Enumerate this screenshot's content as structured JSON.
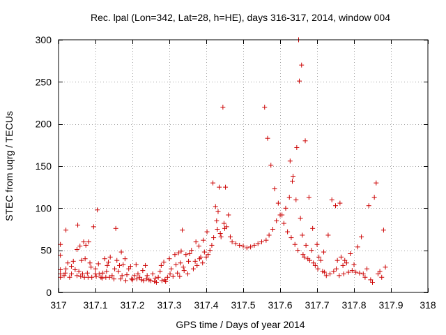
{
  "chart_data": {
    "type": "scatter",
    "title": "Rec. lpal (Lon=342, Lat=28, h=HE), days 316-317, 2014, window 004",
    "xlabel": "GPS time / Days of year 2014",
    "ylabel": "STEC from uqrg / TECUs",
    "xlim": [
      317,
      318
    ],
    "ylim": [
      0,
      300
    ],
    "grid": true,
    "marker": "+",
    "color": "#cc0000",
    "xticks": [
      317,
      317.1,
      317.2,
      317.3,
      317.4,
      317.5,
      317.6,
      317.7,
      317.8,
      317.9,
      318
    ],
    "xtick_labels": [
      "317",
      "317.1",
      "317.2",
      "317.3",
      "317.4",
      "317.5",
      "317.6",
      "317.7",
      "317.8",
      "317.9",
      "318"
    ],
    "yticks": [
      0,
      50,
      100,
      150,
      200,
      250,
      300
    ],
    "ytick_labels": [
      "0",
      "50",
      "100",
      "150",
      "200",
      "250",
      "300"
    ],
    "series": [
      {
        "name": "STEC",
        "points": [
          [
            317.005,
            57
          ],
          [
            317.005,
            44
          ],
          [
            317.005,
            27
          ],
          [
            317.005,
            22
          ],
          [
            317.005,
            18
          ],
          [
            317.015,
            20
          ],
          [
            317.018,
            23
          ],
          [
            317.02,
            28
          ],
          [
            317.02,
            74
          ],
          [
            317.025,
            35
          ],
          [
            317.03,
            18
          ],
          [
            317.035,
            31
          ],
          [
            317.035,
            22
          ],
          [
            317.04,
            37
          ],
          [
            317.045,
            27
          ],
          [
            317.05,
            20
          ],
          [
            317.05,
            51
          ],
          [
            317.052,
            80
          ],
          [
            317.055,
            25
          ],
          [
            317.058,
            55
          ],
          [
            317.06,
            19
          ],
          [
            317.062,
            38
          ],
          [
            317.065,
            22
          ],
          [
            317.068,
            60
          ],
          [
            317.07,
            18
          ],
          [
            317.072,
            40
          ],
          [
            317.074,
            56
          ],
          [
            317.078,
            23
          ],
          [
            317.08,
            18
          ],
          [
            317.082,
            60
          ],
          [
            317.085,
            35
          ],
          [
            317.088,
            30
          ],
          [
            317.09,
            18
          ],
          [
            317.095,
            78
          ],
          [
            317.1,
            22
          ],
          [
            317.1,
            28
          ],
          [
            317.102,
            19
          ],
          [
            317.105,
            98
          ],
          [
            317.108,
            34
          ],
          [
            317.11,
            22
          ],
          [
            317.115,
            18
          ],
          [
            317.118,
            17
          ],
          [
            317.12,
            23
          ],
          [
            317.125,
            40
          ],
          [
            317.128,
            18
          ],
          [
            317.13,
            25
          ],
          [
            317.132,
            32
          ],
          [
            317.135,
            36
          ],
          [
            317.138,
            18
          ],
          [
            317.14,
            42
          ],
          [
            317.145,
            20
          ],
          [
            317.15,
            16
          ],
          [
            317.152,
            28
          ],
          [
            317.155,
            76
          ],
          [
            317.158,
            38
          ],
          [
            317.162,
            25
          ],
          [
            317.165,
            32
          ],
          [
            317.168,
            16
          ],
          [
            317.17,
            48
          ],
          [
            317.172,
            20
          ],
          [
            317.175,
            33
          ],
          [
            317.18,
            40
          ],
          [
            317.182,
            14
          ],
          [
            317.185,
            21
          ],
          [
            317.19,
            28
          ],
          [
            317.195,
            31
          ],
          [
            317.198,
            16
          ],
          [
            317.2,
            15
          ],
          [
            317.205,
            20
          ],
          [
            317.21,
            33
          ],
          [
            317.212,
            16
          ],
          [
            317.215,
            22
          ],
          [
            317.22,
            18
          ],
          [
            317.225,
            15
          ],
          [
            317.228,
            26
          ],
          [
            317.23,
            14
          ],
          [
            317.235,
            32
          ],
          [
            317.238,
            16
          ],
          [
            317.24,
            20
          ],
          [
            317.245,
            15
          ],
          [
            317.25,
            14
          ],
          [
            317.255,
            22
          ],
          [
            317.26,
            13
          ],
          [
            317.262,
            17
          ],
          [
            317.265,
            12
          ],
          [
            317.27,
            18
          ],
          [
            317.275,
            25
          ],
          [
            317.278,
            32
          ],
          [
            317.28,
            14
          ],
          [
            317.285,
            36
          ],
          [
            317.288,
            15
          ],
          [
            317.29,
            13
          ],
          [
            317.295,
            18
          ],
          [
            317.3,
            40
          ],
          [
            317.302,
            22
          ],
          [
            317.305,
            28
          ],
          [
            317.31,
            19
          ],
          [
            317.315,
            45
          ],
          [
            317.318,
            33
          ],
          [
            317.322,
            23
          ],
          [
            317.325,
            47
          ],
          [
            317.328,
            19
          ],
          [
            317.33,
            35
          ],
          [
            317.332,
            49
          ],
          [
            317.335,
            74
          ],
          [
            317.338,
            30
          ],
          [
            317.34,
            26
          ],
          [
            317.345,
            45
          ],
          [
            317.35,
            22
          ],
          [
            317.352,
            37
          ],
          [
            317.355,
            46
          ],
          [
            317.36,
            50
          ],
          [
            317.365,
            28
          ],
          [
            317.37,
            37
          ],
          [
            317.372,
            60
          ],
          [
            317.375,
            32
          ],
          [
            317.38,
            55
          ],
          [
            317.382,
            40
          ],
          [
            317.385,
            42
          ],
          [
            317.39,
            35
          ],
          [
            317.392,
            62
          ],
          [
            317.395,
            48
          ],
          [
            317.4,
            42
          ],
          [
            317.402,
            72
          ],
          [
            317.405,
            45
          ],
          [
            317.41,
            50
          ],
          [
            317.415,
            56
          ],
          [
            317.418,
            130
          ],
          [
            317.42,
            65
          ],
          [
            317.425,
            102
          ],
          [
            317.428,
            85
          ],
          [
            317.43,
            75
          ],
          [
            317.432,
            96
          ],
          [
            317.435,
            125
          ],
          [
            317.438,
            70
          ],
          [
            317.44,
            66
          ],
          [
            317.445,
            220
          ],
          [
            317.448,
            82
          ],
          [
            317.45,
            76
          ],
          [
            317.452,
            125
          ],
          [
            317.455,
            78
          ],
          [
            317.46,
            92
          ],
          [
            317.465,
            66
          ],
          [
            317.47,
            60
          ],
          [
            317.48,
            58
          ],
          [
            317.49,
            56
          ],
          [
            317.5,
            55
          ],
          [
            317.51,
            53
          ],
          [
            317.52,
            54
          ],
          [
            317.53,
            56
          ],
          [
            317.54,
            58
          ],
          [
            317.55,
            60
          ],
          [
            317.558,
            220
          ],
          [
            317.562,
            62
          ],
          [
            317.566,
            183
          ],
          [
            317.57,
            68
          ],
          [
            317.575,
            151
          ],
          [
            317.58,
            75
          ],
          [
            317.585,
            123
          ],
          [
            317.59,
            85
          ],
          [
            317.595,
            106
          ],
          [
            317.6,
            92
          ],
          [
            317.605,
            92
          ],
          [
            317.61,
            82
          ],
          [
            317.615,
            100
          ],
          [
            317.62,
            72
          ],
          [
            317.625,
            113
          ],
          [
            317.627,
            156
          ],
          [
            317.63,
            65
          ],
          [
            317.633,
            132
          ],
          [
            317.635,
            138
          ],
          [
            317.64,
            57
          ],
          [
            317.643,
            110
          ],
          [
            317.645,
            172
          ],
          [
            317.648,
            50
          ],
          [
            317.65,
            300
          ],
          [
            317.652,
            251
          ],
          [
            317.655,
            88
          ],
          [
            317.658,
            270
          ],
          [
            317.66,
            68
          ],
          [
            317.662,
            45
          ],
          [
            317.665,
            42
          ],
          [
            317.668,
            180
          ],
          [
            317.67,
            56
          ],
          [
            317.675,
            40
          ],
          [
            317.678,
            113
          ],
          [
            317.68,
            38
          ],
          [
            317.685,
            50
          ],
          [
            317.688,
            76
          ],
          [
            317.69,
            35
          ],
          [
            317.695,
            32
          ],
          [
            317.7,
            57
          ],
          [
            317.702,
            28
          ],
          [
            317.705,
            42
          ],
          [
            317.71,
            38
          ],
          [
            317.715,
            25
          ],
          [
            317.718,
            48
          ],
          [
            317.72,
            24
          ],
          [
            317.725,
            20
          ],
          [
            317.73,
            68
          ],
          [
            317.735,
            22
          ],
          [
            317.74,
            110
          ],
          [
            317.745,
            25
          ],
          [
            317.75,
            103
          ],
          [
            317.752,
            28
          ],
          [
            317.755,
            38
          ],
          [
            317.76,
            20
          ],
          [
            317.762,
            106
          ],
          [
            317.765,
            42
          ],
          [
            317.77,
            32
          ],
          [
            317.772,
            22
          ],
          [
            317.775,
            38
          ],
          [
            317.78,
            35
          ],
          [
            317.785,
            24
          ],
          [
            317.79,
            46
          ],
          [
            317.795,
            26
          ],
          [
            317.8,
            33
          ],
          [
            317.805,
            24
          ],
          [
            317.81,
            54
          ],
          [
            317.815,
            23
          ],
          [
            317.82,
            66
          ],
          [
            317.825,
            22
          ],
          [
            317.83,
            18
          ],
          [
            317.835,
            28
          ],
          [
            317.84,
            103
          ],
          [
            317.845,
            15
          ],
          [
            317.85,
            12
          ],
          [
            317.855,
            113
          ],
          [
            317.86,
            130
          ],
          [
            317.865,
            22
          ],
          [
            317.87,
            25
          ],
          [
            317.875,
            18
          ],
          [
            317.88,
            74
          ],
          [
            317.885,
            30
          ]
        ]
      }
    ]
  }
}
